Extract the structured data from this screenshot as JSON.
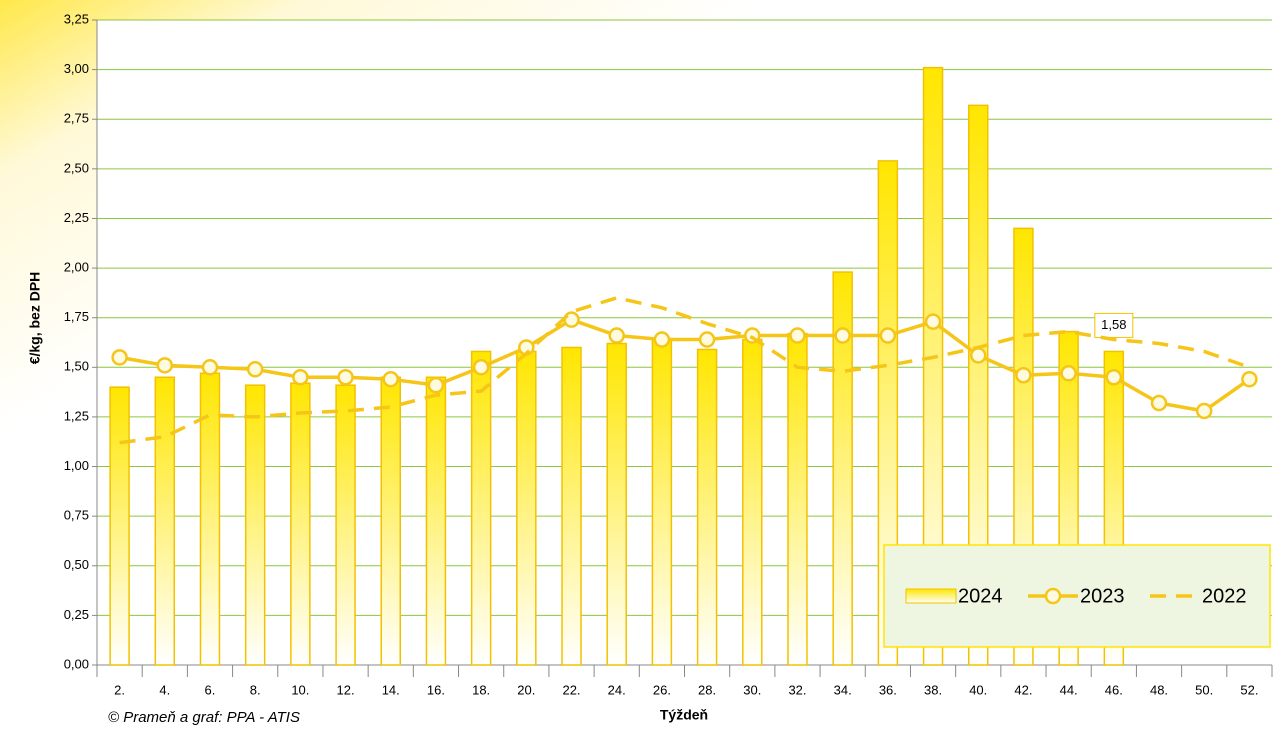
{
  "chart_data": {
    "type": "bar-line",
    "y_label": "€/kg, bez DPH",
    "x_label": "Týždeň",
    "source": "© Prameň a graf: PPA - ATIS",
    "categories": [
      "2.",
      "4.",
      "6.",
      "8.",
      "10.",
      "12.",
      "14.",
      "16.",
      "18.",
      "20.",
      "22.",
      "24.",
      "26.",
      "28.",
      "30.",
      "32.",
      "34.",
      "36.",
      "38.",
      "40.",
      "42.",
      "44.",
      "46.",
      "48.",
      "50.",
      "52."
    ],
    "series": [
      {
        "name": "2024",
        "type": "bar",
        "color": "#ffe600",
        "border": "#f2c200",
        "values": [
          1.4,
          1.45,
          1.47,
          1.41,
          1.42,
          1.41,
          1.45,
          1.45,
          1.58,
          1.58,
          1.6,
          1.62,
          1.64,
          1.59,
          1.64,
          1.67,
          1.98,
          2.54,
          3.01,
          2.82,
          2.2,
          1.68,
          1.58,
          null,
          null,
          null
        ],
        "value_labels": [
          null,
          null,
          null,
          null,
          null,
          null,
          null,
          null,
          null,
          null,
          null,
          null,
          null,
          null,
          null,
          null,
          null,
          null,
          null,
          null,
          null,
          null,
          "1,58",
          null,
          null,
          null
        ]
      },
      {
        "name": "2023",
        "type": "line",
        "color": "#f5c518",
        "marker": true,
        "values": [
          1.55,
          1.51,
          1.5,
          1.49,
          1.45,
          1.45,
          1.44,
          1.41,
          1.5,
          1.6,
          1.74,
          1.66,
          1.64,
          1.64,
          1.66,
          1.66,
          1.66,
          1.66,
          1.73,
          1.56,
          1.46,
          1.47,
          1.45,
          1.32,
          1.28,
          1.44
        ]
      },
      {
        "name": "2022",
        "type": "line",
        "color": "#f5c518",
        "dashed": true,
        "values": [
          1.12,
          1.15,
          1.26,
          1.25,
          1.27,
          1.28,
          1.3,
          1.36,
          1.38,
          1.57,
          1.78,
          1.85,
          1.8,
          1.72,
          1.65,
          1.5,
          1.48,
          1.51,
          1.55,
          1.6,
          1.66,
          1.68,
          1.64,
          1.62,
          1.58,
          1.5
        ]
      }
    ],
    "ylim": [
      0,
      3.25
    ],
    "yticks": [
      {
        "value": 0,
        "label": "0,00"
      },
      {
        "value": 0.25,
        "label": "0,25"
      },
      {
        "value": 0.5,
        "label": "0,50"
      },
      {
        "value": 0.75,
        "label": "0,75"
      },
      {
        "value": 1,
        "label": "1,00"
      },
      {
        "value": 1.25,
        "label": "1,25"
      },
      {
        "value": 1.5,
        "label": "1,50"
      },
      {
        "value": 1.75,
        "label": "1,75"
      },
      {
        "value": 2,
        "label": "2,00"
      },
      {
        "value": 2.25,
        "label": "2,25"
      },
      {
        "value": 2.5,
        "label": "2,50"
      },
      {
        "value": 2.75,
        "label": "2,75"
      },
      {
        "value": 3,
        "label": "3,00"
      },
      {
        "value": 3.25,
        "label": "3,25"
      }
    ],
    "grid": true,
    "grid_color": "#8cc63f",
    "legend": "bottom-right"
  }
}
